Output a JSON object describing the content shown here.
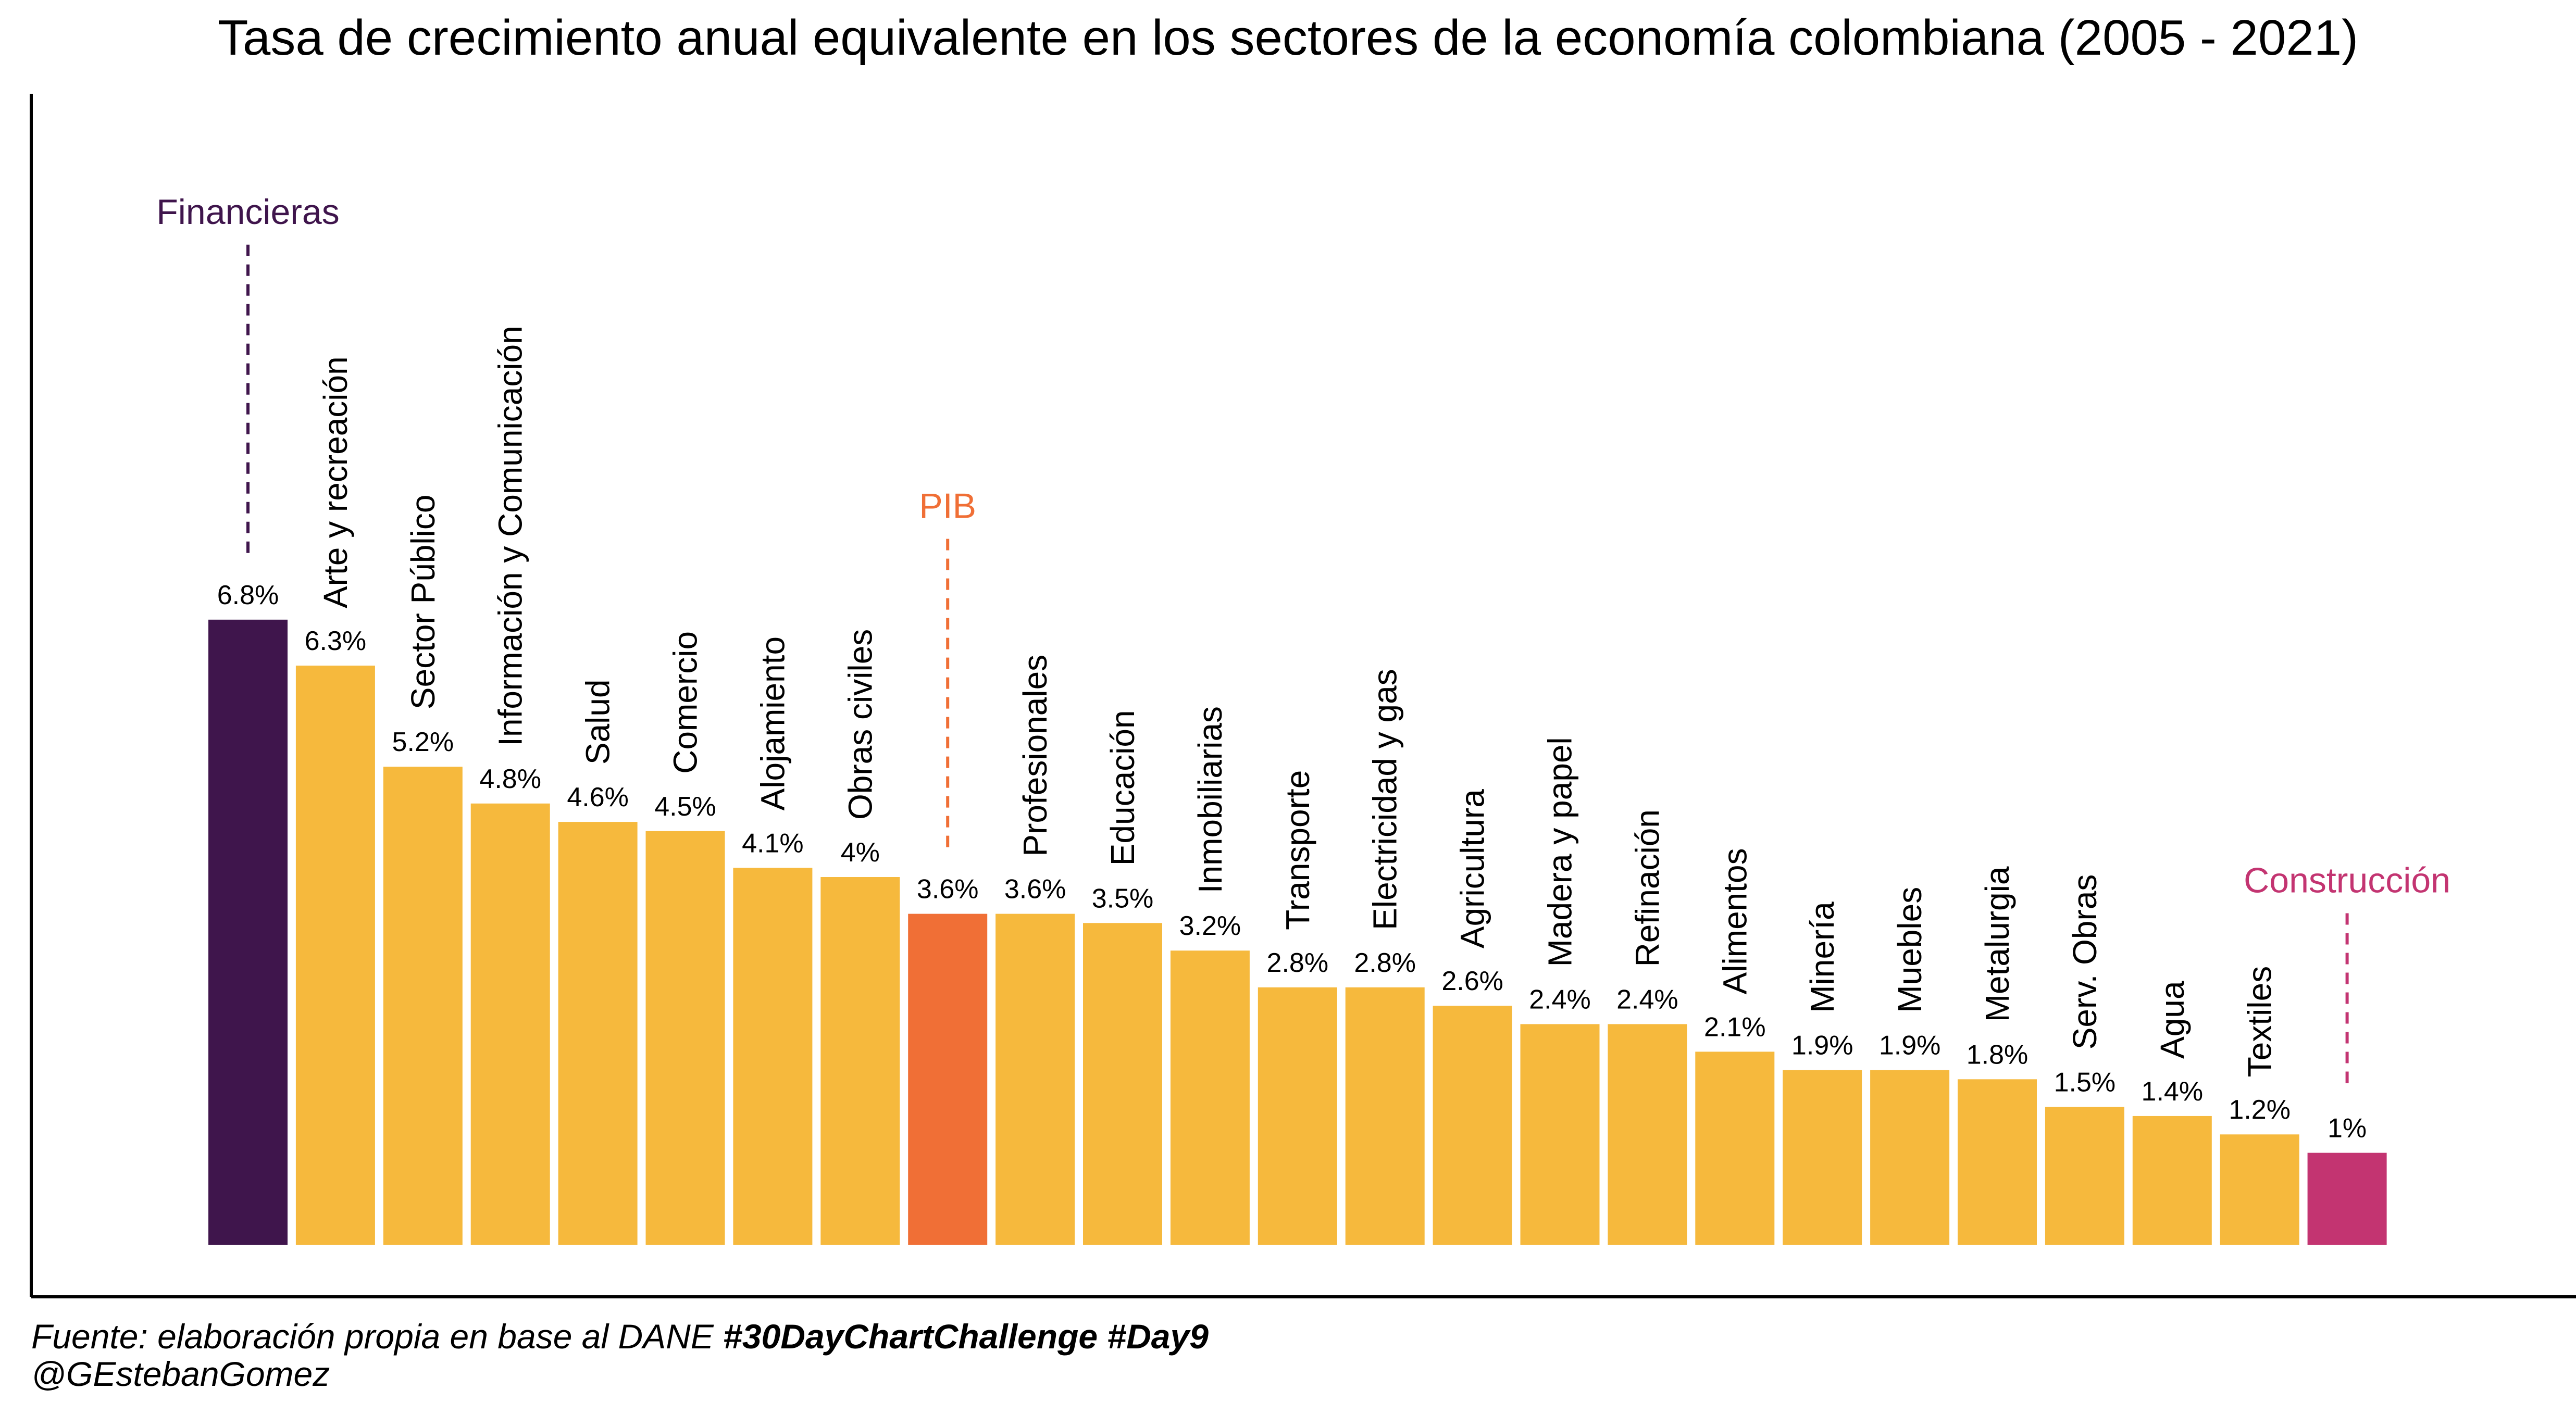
{
  "chart_data": {
    "type": "bar",
    "title": "Tasa de crecimiento anual equivalente en los sectores de la economía colombiana (2005 - 2021)",
    "xlabel": "",
    "ylabel": "",
    "ylim": [
      0,
      7.6
    ],
    "grid": false,
    "legend": "none",
    "value_suffix": "%",
    "categories": [
      "Financieras",
      "Arte y recreación",
      "Sector Público",
      "Información y Comunicación",
      "Salud",
      "Comercio",
      "Alojamiento",
      "Obras civiles",
      "PIB",
      "Profesionales",
      "Educación",
      "Inmobiliarias",
      "Transporte",
      "Electricidad y gas",
      "Agricultura",
      "Madera y papel",
      "Refinación",
      "Alimentos",
      "Minería",
      "Muebles",
      "Metalurgia",
      "Serv. Obras",
      "Agua",
      "Textiles",
      "Construcción"
    ],
    "values": [
      6.8,
      6.3,
      5.2,
      4.8,
      4.6,
      4.5,
      4.1,
      4.0,
      3.6,
      3.6,
      3.5,
      3.2,
      2.8,
      2.8,
      2.6,
      2.4,
      2.4,
      2.1,
      1.9,
      1.9,
      1.8,
      1.5,
      1.4,
      1.2,
      1.0
    ],
    "value_labels": [
      "6.8%",
      "6.3%",
      "5.2%",
      "4.8%",
      "4.6%",
      "4.5%",
      "4.1%",
      "4%",
      "3.6%",
      "3.6%",
      "3.5%",
      "3.2%",
      "2.8%",
      "2.8%",
      "2.6%",
      "2.4%",
      "2.4%",
      "2.1%",
      "1.9%",
      "1.9%",
      "1.8%",
      "1.5%",
      "1.4%",
      "1.2%",
      "1%"
    ],
    "highlighted": {
      "Financieras": "#3F154C",
      "PIB": "#F06F36",
      "Construcción": "#C33471"
    },
    "default_color": "#F6B93D",
    "colors": {
      "text": "#000000",
      "axis": "#000000",
      "background": "#FFFFFF"
    }
  },
  "caption": {
    "source": "Fuente: elaboración propia en base al DANE ",
    "hashtags": "#30DayChartChallenge #Day9",
    "author": "@GEstebanGomez"
  }
}
